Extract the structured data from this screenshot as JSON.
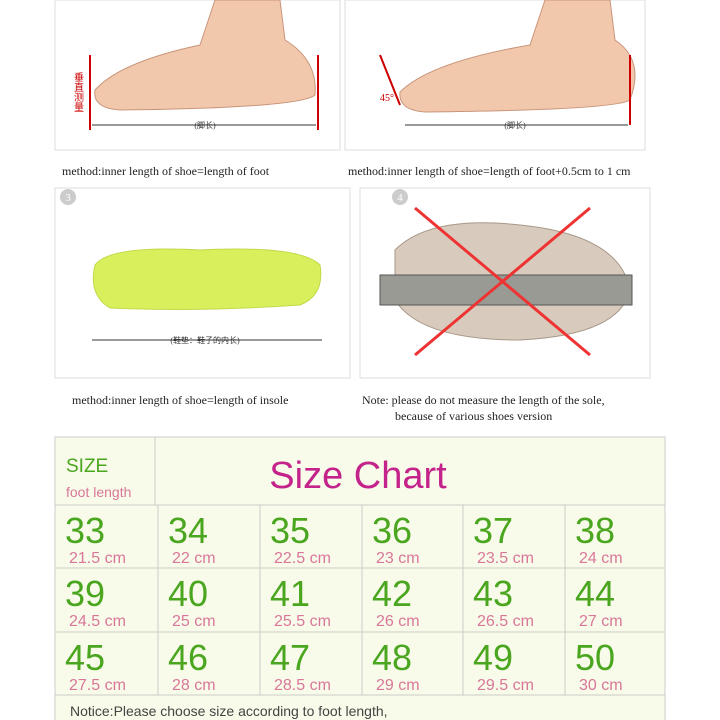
{
  "panels": [
    {
      "caption": "method:inner length of shoe=length of foot",
      "labels": [
        "垂直测量",
        "(脚长)"
      ]
    },
    {
      "caption": "method:inner length of shoe=length of foot+0.5cm to 1 cm",
      "labels": [
        "45°",
        "(脚长)"
      ]
    },
    {
      "number": "3",
      "caption": "method:inner length of shoe=length of insole",
      "labels": [
        "(鞋垫：鞋子的内长)"
      ]
    },
    {
      "number": "4",
      "caption": "Note: please do not measure the length of the sole,",
      "caption2": "because of various shoes version"
    }
  ],
  "table": {
    "size_header": "SIZE",
    "length_header": "foot length",
    "title": "Size Chart",
    "rows": [
      [
        [
          "33",
          "21.5 cm"
        ],
        [
          "34",
          "22 cm"
        ],
        [
          "35",
          "22.5 cm"
        ],
        [
          "36",
          "23 cm"
        ],
        [
          "37",
          "23.5 cm"
        ],
        [
          "38",
          "24 cm"
        ]
      ],
      [
        [
          "39",
          "24.5 cm"
        ],
        [
          "40",
          "25 cm"
        ],
        [
          "41",
          "25.5 cm"
        ],
        [
          "42",
          "26 cm"
        ],
        [
          "43",
          "26.5 cm"
        ],
        [
          "44",
          "27 cm"
        ]
      ],
      [
        [
          "45",
          "27.5 cm"
        ],
        [
          "46",
          "28 cm"
        ],
        [
          "47",
          "28.5 cm"
        ],
        [
          "48",
          "29 cm"
        ],
        [
          "49",
          "29.5 cm"
        ],
        [
          "50",
          "30 cm"
        ]
      ]
    ],
    "notice": "Notice:Please choose size according to foot length,"
  }
}
